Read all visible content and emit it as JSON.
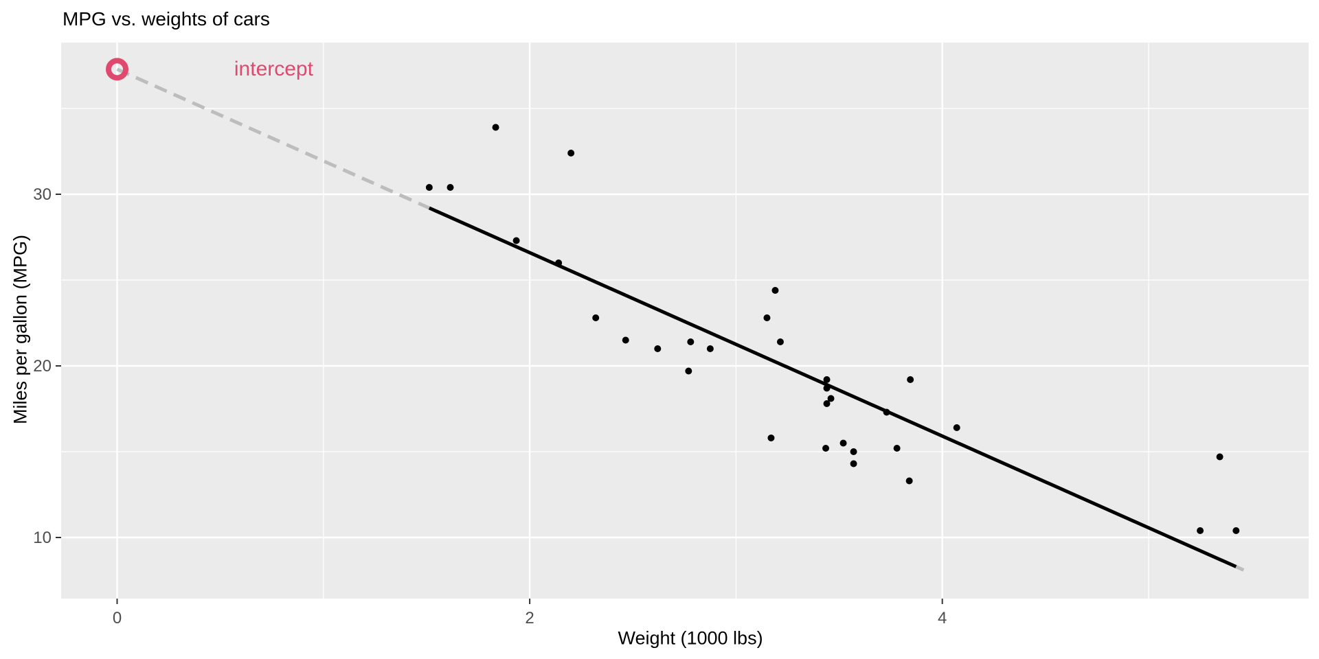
{
  "page": {
    "title": "MPG vs. weights of cars"
  },
  "chart_data": {
    "type": "scatter",
    "title": "MPG vs. weights of cars",
    "xlabel": "Weight (1000 lbs)",
    "ylabel": "Miles per gallon (MPG)",
    "xlim": [
      -0.2714,
      5.776
    ],
    "ylim": [
      6.44,
      38.84
    ],
    "grid": "on",
    "legend": "none",
    "x_ticks": {
      "major": [
        0,
        2,
        4
      ],
      "labels": [
        "0",
        "2",
        "4"
      ],
      "minor": [
        1,
        3,
        5
      ]
    },
    "y_ticks": {
      "major": [
        10,
        20,
        30
      ],
      "labels": [
        "10",
        "20",
        "30"
      ],
      "minor": [
        15,
        25,
        35
      ]
    },
    "points": [
      [
        2.62,
        21.0
      ],
      [
        2.875,
        21.0
      ],
      [
        2.32,
        22.8
      ],
      [
        3.215,
        21.4
      ],
      [
        3.44,
        18.7
      ],
      [
        3.46,
        18.1
      ],
      [
        3.57,
        14.3
      ],
      [
        3.19,
        24.4
      ],
      [
        3.15,
        22.8
      ],
      [
        3.44,
        19.2
      ],
      [
        3.44,
        17.8
      ],
      [
        4.07,
        16.4
      ],
      [
        3.73,
        17.3
      ],
      [
        3.78,
        15.2
      ],
      [
        5.25,
        10.4
      ],
      [
        5.424,
        10.4
      ],
      [
        5.345,
        14.7
      ],
      [
        2.2,
        32.4
      ],
      [
        1.615,
        30.4
      ],
      [
        1.835,
        33.9
      ],
      [
        2.465,
        21.5
      ],
      [
        3.52,
        15.5
      ],
      [
        3.435,
        15.2
      ],
      [
        3.84,
        13.3
      ],
      [
        3.845,
        19.2
      ],
      [
        1.935,
        27.3
      ],
      [
        2.14,
        26.0
      ],
      [
        1.513,
        30.4
      ],
      [
        3.17,
        15.8
      ],
      [
        2.77,
        19.7
      ],
      [
        3.57,
        15.0
      ],
      [
        2.78,
        21.4
      ]
    ],
    "regression_line": {
      "intercept": 37.285,
      "slope": -5.344,
      "x_range": [
        1.513,
        5.424
      ],
      "color": "#000000",
      "style": "solid"
    },
    "dashed_extension": {
      "x_range": [
        0,
        1.513
      ],
      "color": "#bdbdbd",
      "style": "dashed"
    },
    "intercept_marker": {
      "x": 0,
      "y": 37.285,
      "shape": "open-circle",
      "color": "#e0486e"
    },
    "annotation": {
      "text": "intercept",
      "x": 0.759,
      "y": 37.285,
      "color": "#e0486e"
    },
    "colors": {
      "panel_background": "#ebebeb",
      "gridline": "#ffffff",
      "point": "#000000",
      "tick_label": "#4d4d4d",
      "tick_mark": "#333333",
      "accent_pink": "#e0486e",
      "dash_gray": "#bdbdbd"
    }
  }
}
